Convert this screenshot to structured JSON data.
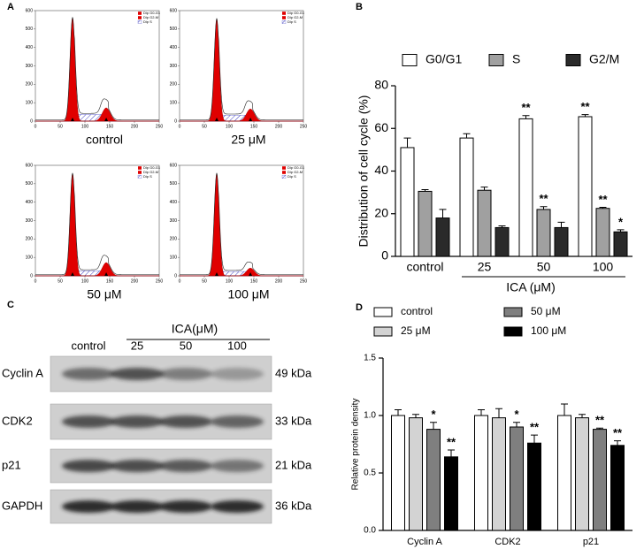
{
  "panel_labels": [
    "A",
    "B",
    "C",
    "D"
  ],
  "flow_panels": [
    {
      "label": "control",
      "legend": [
        "Dip G0-G1",
        "Dip G2-M",
        "Dip S"
      ],
      "xlim": [
        0,
        250
      ],
      "ylim": [
        0,
        600
      ],
      "xticks": [
        0,
        50,
        100,
        150,
        200,
        250
      ],
      "yticks": [
        0,
        100,
        200,
        300,
        400,
        500,
        600
      ]
    },
    {
      "label": "25 μM",
      "legend": [
        "Dip G0-G1",
        "Dip G2-M",
        "Dip S"
      ],
      "xlim": [
        0,
        250
      ],
      "ylim": [
        0,
        600
      ],
      "xticks": [
        0,
        50,
        100,
        150,
        200,
        250
      ],
      "yticks": [
        0,
        100,
        200,
        300,
        400,
        500,
        600
      ]
    },
    {
      "label": "50 μM",
      "legend": [
        "Dip G0-G1",
        "Dip G2-M",
        "Dip S"
      ],
      "xlim": [
        0,
        250
      ],
      "ylim": [
        0,
        600
      ],
      "xticks": [
        0,
        50,
        100,
        150,
        200,
        250
      ],
      "yticks": [
        0,
        100,
        200,
        300,
        400,
        500,
        600
      ]
    },
    {
      "label": "100 μM",
      "legend": [
        "Dip G0-G1",
        "Dip G2-M",
        "Dip S"
      ],
      "xlim": [
        0,
        250
      ],
      "ylim": [
        0,
        600
      ],
      "xticks": [
        0,
        50,
        100,
        150,
        200,
        250
      ],
      "yticks": [
        0,
        100,
        200,
        300,
        400,
        500,
        600
      ]
    }
  ],
  "western": {
    "header": "ICA(μM)",
    "lanes": [
      "control",
      "25",
      "50",
      "100"
    ],
    "rows": [
      {
        "protein": "Cyclin A",
        "size": "49 kDa"
      },
      {
        "protein": "CDK2",
        "size": "33 kDa"
      },
      {
        "protein": "p21",
        "size": "21 kDa"
      },
      {
        "protein": "GAPDH",
        "size": "36 kDa"
      }
    ]
  },
  "chart_data": [
    {
      "type": "bar",
      "ylabel": "Distribution of cell cycle (%)",
      "xlabel": "ICA (μM)",
      "categories": [
        "control",
        "25",
        "50",
        "100"
      ],
      "ylim": [
        0,
        80
      ],
      "yticks": [
        0,
        20,
        40,
        60,
        80
      ],
      "series": [
        {
          "name": "G0/G1",
          "color": "#ffffff",
          "values": [
            51,
            55.5,
            64.5,
            65.5
          ],
          "errors": [
            4.5,
            2,
            1.5,
            1
          ],
          "significance": [
            null,
            null,
            "**",
            "**"
          ]
        },
        {
          "name": "S",
          "color": "#a0a0a0",
          "values": [
            30.5,
            31,
            22,
            22.5
          ],
          "errors": [
            0.8,
            1.5,
            1.3,
            0.5
          ],
          "significance": [
            null,
            null,
            "**",
            "**"
          ]
        },
        {
          "name": "G2/M",
          "color": "#2a2a2a",
          "values": [
            18,
            13.5,
            13.5,
            11.5
          ],
          "errors": [
            4,
            0.8,
            2.5,
            1
          ],
          "significance": [
            null,
            null,
            null,
            "*"
          ]
        }
      ]
    },
    {
      "type": "bar",
      "ylabel": "Relative protein density",
      "categories": [
        "Cyclin A",
        "CDK2",
        "p21"
      ],
      "ylim": [
        0,
        1.5
      ],
      "yticks": [
        {
          "value": 0,
          "label": "0.0"
        },
        0.5,
        {
          "value": 1,
          "label": "1.0"
        },
        1.5
      ],
      "series": [
        {
          "name": "control",
          "color": "#ffffff",
          "values": [
            1.0,
            1.0,
            1.0
          ],
          "errors": [
            0.05,
            0.05,
            0.1
          ],
          "significance": [
            null,
            null,
            null
          ]
        },
        {
          "name": "25 μM",
          "color": "#d3d3d3",
          "values": [
            0.98,
            0.98,
            0.98
          ],
          "errors": [
            0.03,
            0.08,
            0.03
          ],
          "significance": [
            null,
            null,
            null
          ]
        },
        {
          "name": "50 μM",
          "color": "#7f7f7f",
          "values": [
            0.88,
            0.9,
            0.88
          ],
          "errors": [
            0.06,
            0.04,
            0.01
          ],
          "significance": [
            "*",
            "*",
            "**"
          ]
        },
        {
          "name": "100 μM",
          "color": "#000000",
          "values": [
            0.64,
            0.76,
            0.74
          ],
          "errors": [
            0.06,
            0.07,
            0.04
          ],
          "significance": [
            "**",
            "**",
            "**"
          ]
        }
      ]
    }
  ]
}
